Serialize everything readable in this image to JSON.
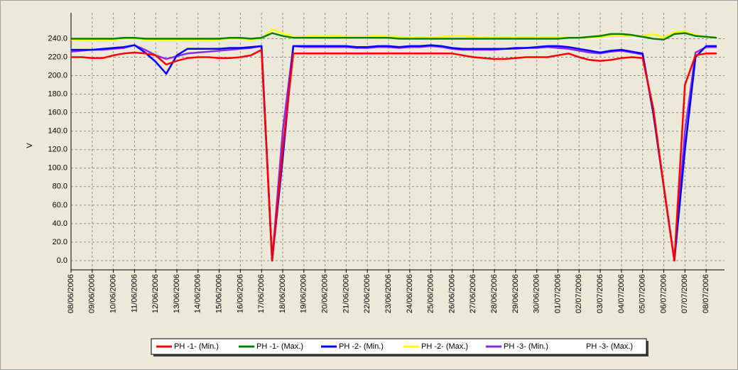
{
  "chart_data": {
    "type": "line",
    "y_label": "V",
    "categories": [
      "08/06/2006",
      null,
      "09/06/2006",
      null,
      "10/06/2006",
      null,
      "11/06/2006",
      null,
      "12/06/2006",
      null,
      "13/06/2006",
      null,
      "14/06/2006",
      null,
      "15/06/2006",
      null,
      "16/06/2006",
      null,
      "17/06/2006",
      null,
      "18/06/2006",
      null,
      "19/06/2006",
      null,
      "20/06/2006",
      null,
      "21/06/2006",
      null,
      "22/06/2006",
      null,
      "23/06/2006",
      null,
      "24/06/2006",
      null,
      "25/06/2006",
      null,
      "26/06/2006",
      null,
      "27/06/2006",
      null,
      "28/06/2006",
      null,
      "29/06/2006",
      null,
      "30/06/2006",
      null,
      "01/07/2006",
      null,
      "02/07/2006",
      null,
      "03/07/2006",
      null,
      "04/07/2006",
      null,
      "05/07/2006",
      null,
      "06/07/2006",
      null,
      "07/07/2006",
      null,
      "08/07/2006",
      null
    ],
    "series": [
      {
        "name": "PH -1- (Min.)",
        "color": "#ff0000",
        "values": [
          220,
          220,
          219,
          219,
          222,
          224,
          225,
          224,
          222,
          212,
          216,
          219,
          220,
          220,
          219,
          219,
          220,
          222,
          228,
          0,
          120,
          224,
          224,
          224,
          224,
          224,
          224,
          224,
          224,
          224,
          224,
          224,
          224,
          224,
          224,
          224,
          224,
          222,
          220,
          219,
          218,
          218,
          219,
          220,
          220,
          220,
          222,
          224,
          220,
          217,
          216,
          217,
          219,
          220,
          219,
          165,
          80,
          0,
          190,
          222,
          224,
          224
        ]
      },
      {
        "name": "PH -1- (Max.)",
        "color": "#008000",
        "values": [
          240,
          240,
          240,
          240,
          240,
          241,
          241,
          240,
          240,
          240,
          240,
          240,
          240,
          240,
          240,
          241,
          241,
          240,
          241,
          246,
          243,
          241,
          241,
          241,
          241,
          241,
          241,
          241,
          241,
          241,
          241,
          240,
          240,
          240,
          240,
          240,
          240,
          240,
          240,
          240,
          240,
          240,
          240,
          240,
          240,
          240,
          240,
          241,
          241,
          242,
          243,
          245,
          245,
          244,
          242,
          240,
          239,
          245,
          246,
          243,
          242,
          241
        ]
      },
      {
        "name": "PH -2- (Min.)",
        "color": "#0000ff",
        "values": [
          228,
          228,
          228,
          229,
          230,
          231,
          233,
          225,
          215,
          202,
          222,
          229,
          229,
          229,
          229,
          230,
          230,
          231,
          232,
          0,
          110,
          232,
          232,
          232,
          232,
          232,
          232,
          231,
          231,
          232,
          232,
          231,
          232,
          232,
          233,
          232,
          230,
          229,
          229,
          229,
          229,
          229,
          230,
          230,
          231,
          232,
          232,
          231,
          229,
          227,
          225,
          227,
          228,
          226,
          224,
          160,
          80,
          0,
          120,
          220,
          232,
          232
        ]
      },
      {
        "name": "PH -2- (Max.)",
        "color": "#ffff00",
        "values": [
          239,
          239,
          239,
          239,
          239,
          240,
          240,
          239,
          239,
          239,
          239,
          239,
          239,
          239,
          239,
          240,
          240,
          239,
          240,
          250,
          246,
          242,
          242,
          243,
          243,
          243,
          242,
          242,
          242,
          243,
          242,
          242,
          241,
          241,
          241,
          242,
          243,
          243,
          242,
          241,
          241,
          241,
          241,
          241,
          241,
          241,
          241,
          241,
          241,
          241,
          242,
          243,
          243,
          243,
          243,
          245,
          241,
          247,
          248,
          244,
          242,
          241
        ]
      },
      {
        "name": "PH -3- (Min.)",
        "color": "#8a2be2",
        "values": [
          226,
          227,
          228,
          228,
          229,
          230,
          233,
          228,
          222,
          218,
          221,
          224,
          225,
          226,
          227,
          228,
          229,
          230,
          232,
          0,
          140,
          232,
          231,
          231,
          231,
          231,
          231,
          230,
          230,
          231,
          231,
          230,
          231,
          231,
          232,
          231,
          229,
          228,
          228,
          228,
          228,
          229,
          229,
          230,
          230,
          231,
          230,
          229,
          227,
          225,
          224,
          226,
          227,
          225,
          223,
          160,
          80,
          0,
          140,
          225,
          231,
          231
        ]
      },
      {
        "name": "PH -3- (Max.)",
        "color": "#ffffff",
        "values": [
          239,
          239,
          239,
          239,
          239,
          239,
          239,
          239,
          239,
          239,
          239,
          239,
          239,
          239,
          239,
          239,
          239,
          239,
          240,
          248,
          244,
          240,
          240,
          240,
          240,
          240,
          240,
          240,
          240,
          240,
          240,
          240,
          240,
          240,
          240,
          240,
          240,
          240,
          240,
          240,
          240,
          240,
          240,
          240,
          240,
          240,
          240,
          240,
          240,
          240,
          240,
          240,
          240,
          240,
          240,
          241,
          240,
          246,
          247,
          243,
          241,
          240
        ]
      }
    ],
    "ylim": [
      -10,
      268
    ],
    "yticks": [
      {
        "value": 0,
        "label": "0.0"
      },
      {
        "value": 20,
        "label": "20.0"
      },
      {
        "value": 40,
        "label": "40.0"
      },
      {
        "value": 60,
        "label": "60.0"
      },
      {
        "value": 80,
        "label": "80.0"
      },
      {
        "value": 100,
        "label": "100.0"
      },
      {
        "value": 120,
        "label": "120.0"
      },
      {
        "value": 140,
        "label": "140.0"
      },
      {
        "value": 160,
        "label": "160.0"
      },
      {
        "value": 180,
        "label": "180.0"
      },
      {
        "value": 200,
        "label": "200.0"
      },
      {
        "value": 220,
        "label": "220.0"
      },
      {
        "value": 240,
        "label": "240.0"
      }
    ],
    "grid": true,
    "legend": "bottom"
  }
}
